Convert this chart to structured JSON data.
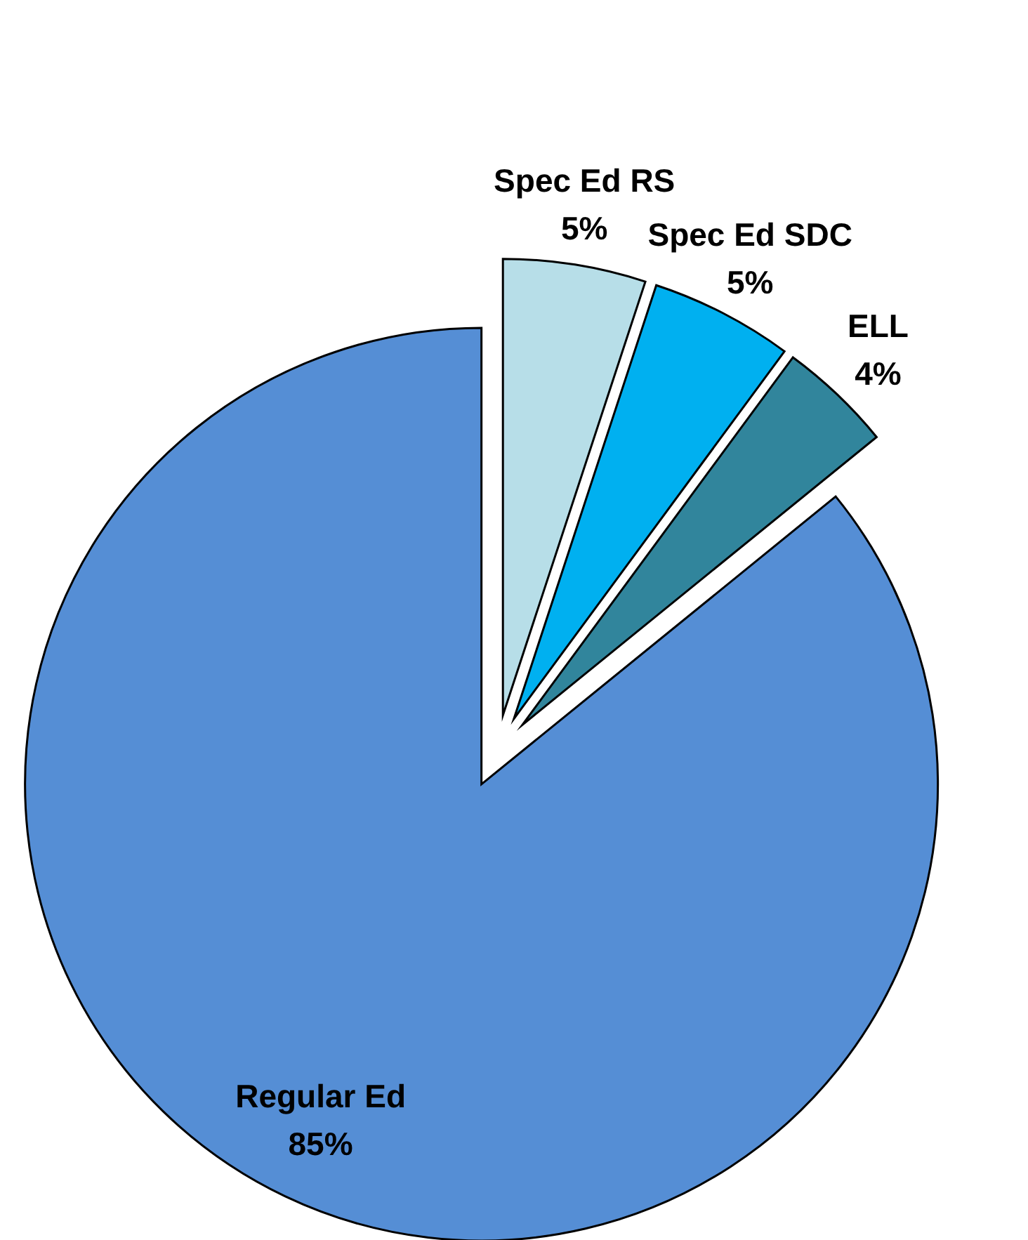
{
  "chart_data": {
    "type": "pie",
    "categories": [
      "Spec Ed RS",
      "Spec Ed SDC",
      "ELL",
      "Regular Ed"
    ],
    "values": [
      5,
      5,
      4,
      85
    ],
    "colors": [
      "#b7dee8",
      "#00b0f0",
      "#31859c",
      "#558ed5"
    ],
    "value_labels": [
      "5%",
      "5%",
      "4%",
      "85%"
    ]
  }
}
